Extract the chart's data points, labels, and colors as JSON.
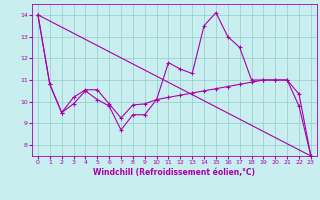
{
  "xlabel": "Windchill (Refroidissement éolien,°C)",
  "xlim": [
    -0.5,
    23.5
  ],
  "ylim": [
    7.5,
    14.5
  ],
  "xticks": [
    0,
    1,
    2,
    3,
    4,
    5,
    6,
    7,
    8,
    9,
    10,
    11,
    12,
    13,
    14,
    15,
    16,
    17,
    18,
    19,
    20,
    21,
    22,
    23
  ],
  "yticks": [
    8,
    9,
    10,
    11,
    12,
    13,
    14
  ],
  "background_color": "#c8eef0",
  "line_color": "#aa00aa",
  "grid_color": "#90ccc8",
  "line1_x": [
    0,
    1,
    2,
    3,
    4,
    5,
    6,
    7,
    8,
    9,
    10,
    11,
    12,
    13,
    14,
    15,
    16,
    17,
    18,
    19,
    20,
    21,
    22,
    23
  ],
  "line1_y": [
    14.0,
    10.8,
    9.5,
    9.9,
    10.5,
    10.1,
    9.8,
    8.7,
    9.4,
    9.4,
    10.1,
    11.8,
    11.5,
    11.3,
    13.5,
    14.1,
    13.0,
    12.5,
    11.0,
    11.0,
    11.0,
    11.0,
    9.8,
    7.5
  ],
  "line2_x": [
    0,
    1,
    2,
    3,
    4,
    5,
    6,
    7,
    8,
    9,
    10,
    11,
    12,
    13,
    14,
    15,
    16,
    17,
    18,
    19,
    20,
    21,
    22,
    23
  ],
  "line2_y": [
    14.0,
    10.8,
    9.5,
    10.2,
    10.55,
    10.55,
    9.9,
    9.25,
    9.85,
    9.9,
    10.1,
    10.2,
    10.3,
    10.4,
    10.5,
    10.6,
    10.7,
    10.8,
    10.9,
    11.0,
    11.0,
    11.0,
    10.35,
    7.5
  ],
  "line3_x": [
    0,
    23
  ],
  "line3_y": [
    14.0,
    7.5
  ]
}
